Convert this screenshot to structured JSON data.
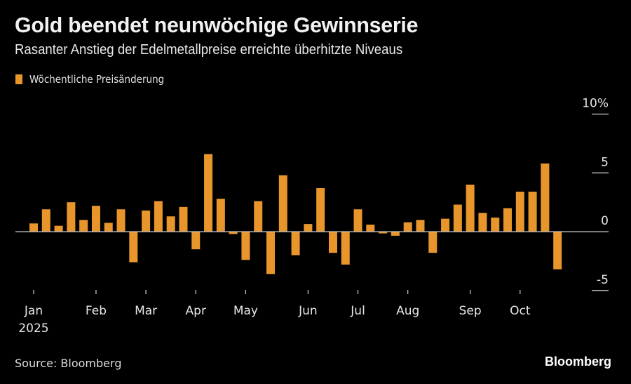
{
  "header": {
    "title": "Gold beendet neunwöchige Gewinnserie",
    "subtitle": "Rasanter Anstieg der Edelmetallpreise erreichte überhitzte Niveaus"
  },
  "footer": {
    "source": "Source: Bloomberg",
    "brand": "Bloomberg"
  },
  "colors": {
    "bar": "#e8962b",
    "background": "#000000",
    "axis": "#bfbfbf"
  },
  "chart_data": {
    "type": "bar",
    "title": "Gold beendet neunwöchige Gewinnserie",
    "subtitle": "Rasanter Anstieg der Edelmetallpreise erreichte überhitzte Niveaus",
    "legend": {
      "position": "top-left",
      "entries": [
        "Wöchentliche Preisänderung"
      ]
    },
    "xlabel": "",
    "ylabel": "",
    "ylim": [
      -5,
      10
    ],
    "y_ticks": [
      {
        "value": 10,
        "label": "10%"
      },
      {
        "value": 5,
        "label": "5"
      },
      {
        "value": 0,
        "label": "0"
      },
      {
        "value": -5,
        "label": "-5"
      }
    ],
    "y_axis_side": "right",
    "x_ticks": [
      {
        "week": 0,
        "label": "Jan",
        "sublabel": "2025"
      },
      {
        "week": 5,
        "label": "Feb"
      },
      {
        "week": 9,
        "label": "Mar"
      },
      {
        "week": 13,
        "label": "Apr"
      },
      {
        "week": 17,
        "label": "May"
      },
      {
        "week": 22,
        "label": "Jun"
      },
      {
        "week": 26,
        "label": "Jul"
      },
      {
        "week": 30,
        "label": "Aug"
      },
      {
        "week": 35,
        "label": "Sep"
      },
      {
        "week": 39,
        "label": "Oct"
      }
    ],
    "series": [
      {
        "name": "Wöchentliche Preisänderung",
        "values": [
          0.7,
          1.9,
          0.5,
          2.5,
          1.0,
          2.2,
          0.75,
          1.9,
          -2.6,
          1.8,
          2.6,
          1.3,
          2.1,
          -1.5,
          6.6,
          2.8,
          -0.2,
          -2.4,
          2.6,
          -3.6,
          4.8,
          -2.0,
          0.65,
          3.7,
          -1.8,
          -2.8,
          1.9,
          0.6,
          -0.15,
          -0.35,
          0.8,
          1.0,
          -1.8,
          1.1,
          2.3,
          4.0,
          1.6,
          1.2,
          2.0,
          3.4,
          3.4,
          5.8,
          -3.2
        ]
      }
    ]
  }
}
